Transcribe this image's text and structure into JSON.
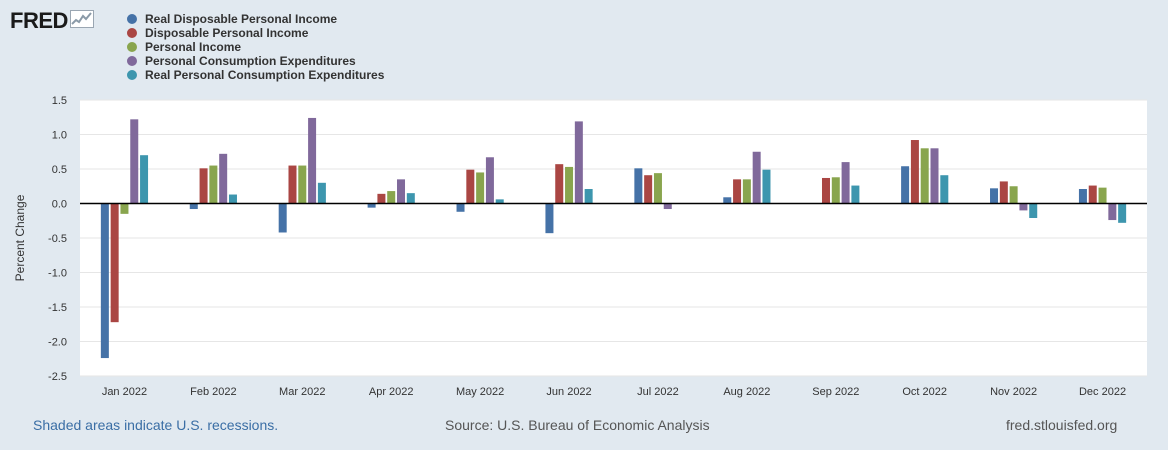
{
  "brand": {
    "name": "FRED",
    "icon": "fred-line-chart-icon"
  },
  "chart_data": {
    "type": "bar",
    "title": "",
    "xlabel": "",
    "ylabel": "Percent Change",
    "ylim": [
      -2.5,
      1.5
    ],
    "yticks": [
      1.5,
      1.0,
      0.5,
      0.0,
      -0.5,
      -1.0,
      -1.5,
      -2.0,
      -2.5
    ],
    "ytick_labels": [
      "1.5",
      "1.0",
      "0.5",
      "0.0",
      "-0.5",
      "-1.0",
      "-1.5",
      "-2.0",
      "-2.5"
    ],
    "grid": true,
    "legend_position": "top-left",
    "categories": [
      "Jan 2022",
      "Feb 2022",
      "Mar 2022",
      "Apr 2022",
      "May 2022",
      "Jun 2022",
      "Jul 2022",
      "Aug 2022",
      "Sep 2022",
      "Oct 2022",
      "Nov 2022",
      "Dec 2022"
    ],
    "series": [
      {
        "name": "Real Disposable Personal Income",
        "color": "#4572a7",
        "values": [
          -2.24,
          -0.08,
          -0.42,
          -0.06,
          -0.12,
          -0.43,
          0.51,
          0.09,
          null,
          0.54,
          0.22,
          0.21
        ]
      },
      {
        "name": "Disposable Personal Income",
        "color": "#aa4643",
        "values": [
          -1.72,
          0.51,
          0.55,
          0.14,
          0.49,
          0.57,
          0.41,
          0.35,
          0.37,
          0.92,
          0.32,
          0.26
        ]
      },
      {
        "name": "Personal Income",
        "color": "#89a54e",
        "values": [
          -0.15,
          0.55,
          0.55,
          0.18,
          0.45,
          0.53,
          0.44,
          0.35,
          0.38,
          0.8,
          0.25,
          0.23
        ]
      },
      {
        "name": "Personal Consumption Expenditures",
        "color": "#80699b",
        "values": [
          1.22,
          0.72,
          1.24,
          0.35,
          0.67,
          1.19,
          -0.08,
          0.75,
          0.6,
          0.8,
          -0.1,
          -0.24
        ]
      },
      {
        "name": "Real Personal Consumption Expenditures",
        "color": "#3d96ae",
        "values": [
          0.7,
          0.13,
          0.3,
          0.15,
          0.06,
          0.21,
          null,
          0.49,
          0.26,
          0.41,
          -0.21,
          -0.28
        ]
      }
    ]
  },
  "footer": {
    "recession_note": "Shaded areas indicate U.S. recessions.",
    "source": "Source: U.S. Bureau of Economic Analysis",
    "site": "fred.stlouisfed.org"
  }
}
